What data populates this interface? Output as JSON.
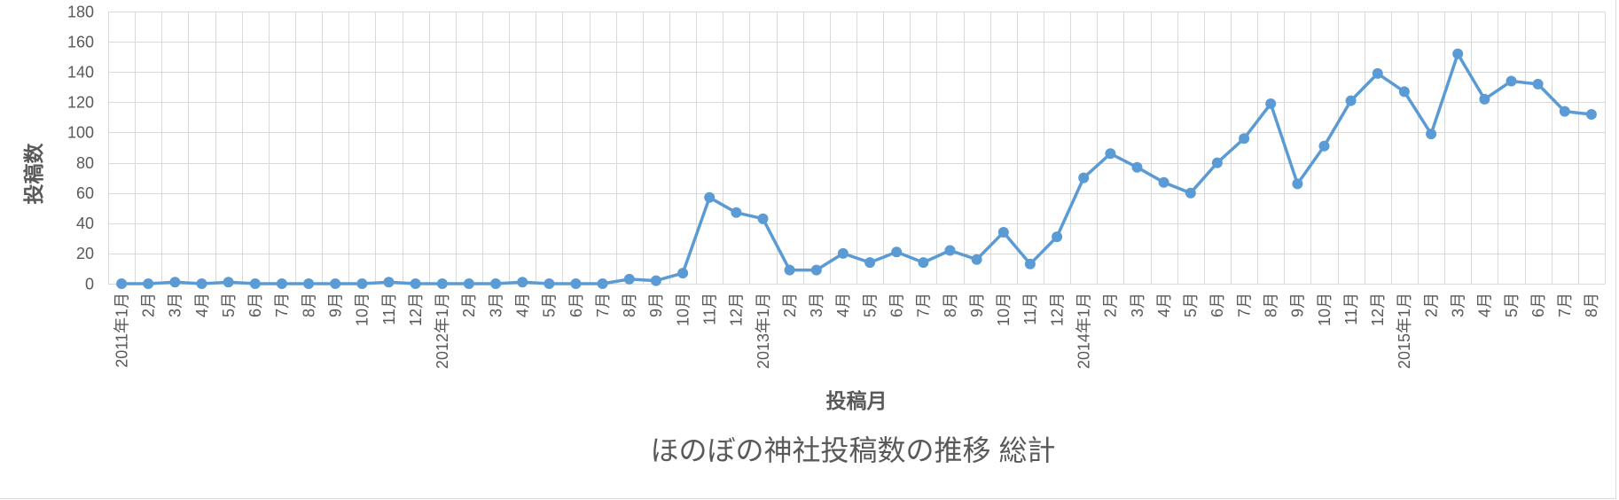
{
  "chart_data": {
    "type": "line",
    "title": "ほのぼの神社投稿数の推移 総計",
    "xlabel": "投稿月",
    "ylabel": "投稿数",
    "categories": [
      "2011年1月",
      "2月",
      "3月",
      "4月",
      "5月",
      "6月",
      "7月",
      "8月",
      "9月",
      "10月",
      "11月",
      "12月",
      "2012年1月",
      "2月",
      "3月",
      "4月",
      "5月",
      "6月",
      "7月",
      "8月",
      "9月",
      "10月",
      "11月",
      "12月",
      "2013年1月",
      "2月",
      "3月",
      "4月",
      "5月",
      "6月",
      "7月",
      "8月",
      "9月",
      "10月",
      "11月",
      "12月",
      "2014年1月",
      "2月",
      "3月",
      "4月",
      "5月",
      "6月",
      "7月",
      "8月",
      "9月",
      "10月",
      "11月",
      "12月",
      "2015年1月",
      "2月",
      "3月",
      "4月",
      "5月",
      "6月",
      "7月",
      "8月"
    ],
    "series": [
      {
        "values": [
          0,
          0,
          1,
          0,
          1,
          0,
          0,
          0,
          0,
          0,
          1,
          0,
          0,
          0,
          0,
          1,
          0,
          0,
          0,
          3,
          2,
          7,
          57,
          47,
          43,
          9,
          9,
          20,
          14,
          21,
          14,
          22,
          16,
          34,
          13,
          31,
          70,
          86,
          77,
          67,
          60,
          80,
          96,
          119,
          66,
          91,
          121,
          139,
          127,
          99,
          152,
          122,
          134,
          132,
          114,
          112
        ]
      }
    ],
    "ylim": [
      0,
      180
    ],
    "yticks": [
      0,
      20,
      40,
      60,
      80,
      100,
      120,
      140,
      160,
      180
    ],
    "grid": true,
    "legend": false,
    "colors": {
      "line": "#5B9BD5",
      "grid": "#D9D9D9",
      "text": "#595959"
    }
  }
}
